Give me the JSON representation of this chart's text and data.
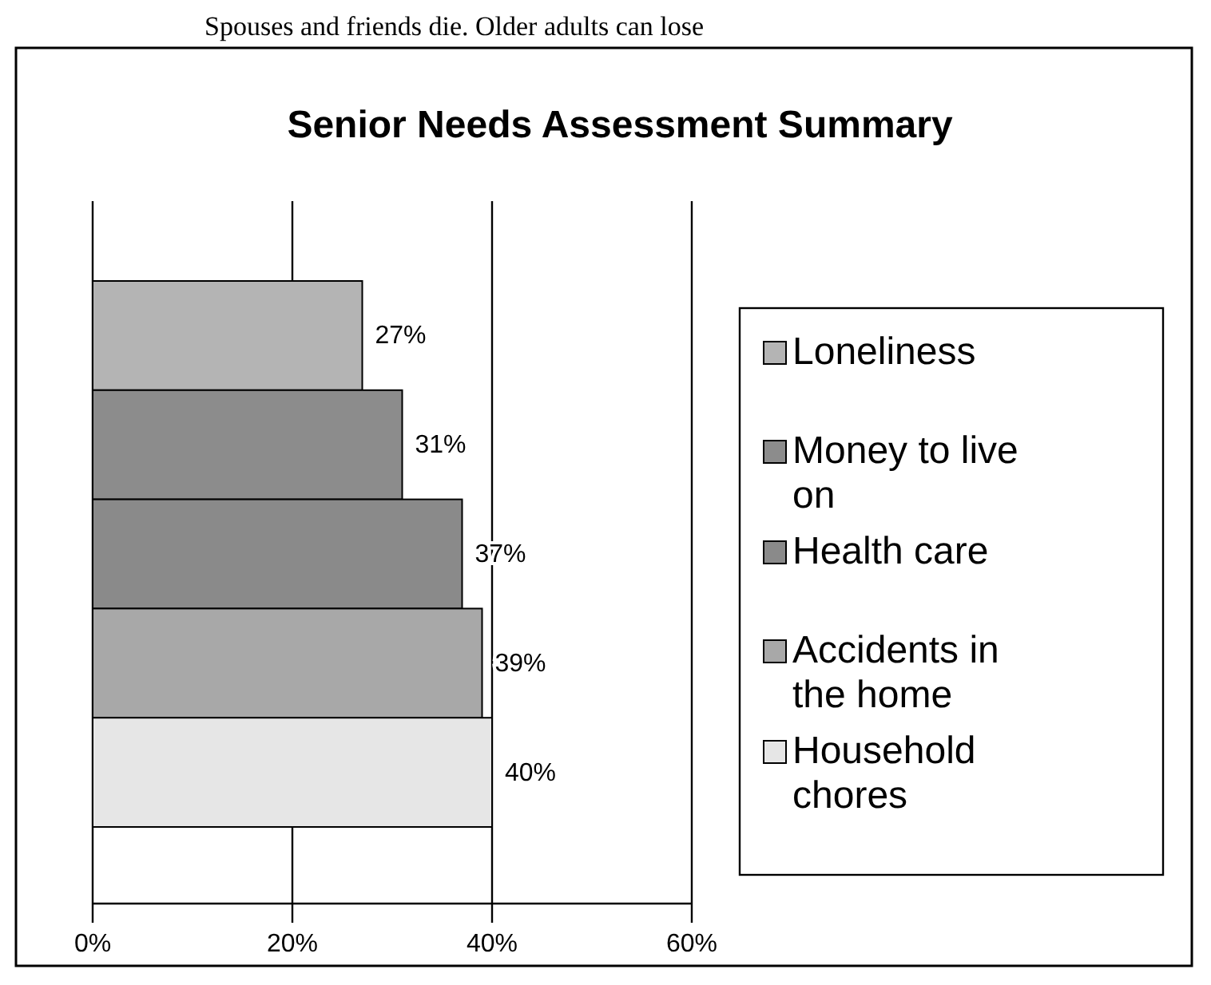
{
  "chart_data": {
    "type": "bar",
    "orientation": "horizontal",
    "title": "Senior Needs Assessment Summary",
    "categories": [
      null
    ],
    "series": [
      {
        "name": "Loneliness",
        "color": "#b4b4b4",
        "values": [
          27
        ]
      },
      {
        "name": "Money to live on",
        "color": "#8c8c8c",
        "values": [
          31
        ]
      },
      {
        "name": "Health care",
        "color": "#8a8a8a",
        "values": [
          37
        ]
      },
      {
        "name": "Accidents in the home",
        "color": "#a8a8a8",
        "values": [
          39
        ]
      },
      {
        "name": "Household chores",
        "color": "#e6e6e6",
        "values": [
          40
        ]
      }
    ],
    "value_labels": [
      "27%",
      "31%",
      "37%",
      "39%",
      "40%"
    ],
    "xlim": [
      0,
      60
    ],
    "xticks": [
      {
        "value": 0,
        "label": "0%"
      },
      {
        "value": 20,
        "label": "20%"
      },
      {
        "value": 40,
        "label": "40%"
      },
      {
        "value": 60,
        "label": "60%"
      }
    ],
    "grid": "x",
    "legend": "right",
    "annotations": [
      "Spouses and friends die. Older adults can lose"
    ]
  }
}
